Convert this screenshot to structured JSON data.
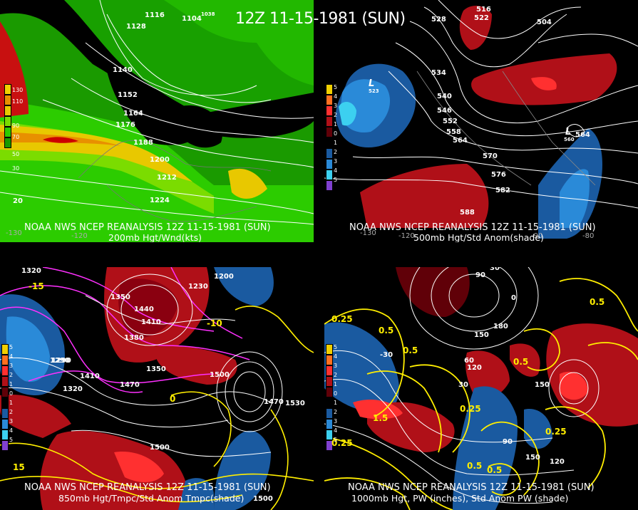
{
  "title": "12Z 11-15-1981 (SUN)",
  "panels": [
    {
      "caption1": "NOAA NWS NCEP REANALYSIS 12Z 11-15-1981 (SUN)",
      "caption2": "200mb Hgt/Wnd(kts)",
      "colorbar": [
        "130",
        "110",
        "90",
        "70",
        "50",
        "30"
      ],
      "labels": [
        "1116",
        "1128",
        "1104",
        "1140",
        "1152",
        "1164",
        "1176",
        "1188",
        "1200",
        "1212",
        "1224",
        "1038",
        "20",
        "-130",
        "-120"
      ]
    },
    {
      "caption1": "NOAA NWS NCEP REANALYSIS 12Z 11-15-1981 (SUN)",
      "caption2": "500mb Hgt/Std Anom(shade)",
      "colorbar": [
        "5",
        "4",
        "3",
        "2",
        "1",
        "0",
        "1",
        "2",
        "3",
        "4",
        "5"
      ],
      "labels": [
        "528",
        "516",
        "522",
        "504",
        "534",
        "540",
        "546",
        "552",
        "558",
        "564",
        "570",
        "576",
        "582",
        "588",
        "564",
        "L",
        "523",
        "L",
        "560",
        "-130",
        "-120",
        "-90",
        "-80"
      ]
    },
    {
      "caption1": "NOAA NWS NCEP REANALYSIS 12Z 11-15-1981 (SUN)",
      "caption2": "850mb Hgt/Tmpc/Std Anom Tmpc(shade)",
      "colorbar": [
        "5",
        "4",
        "3",
        "2",
        "1",
        "0",
        "1",
        "2",
        "3",
        "4",
        "5"
      ],
      "labels": [
        "1320",
        "1290",
        "1350",
        "1380",
        "1410",
        "1440",
        "1470",
        "1500",
        "1530",
        "1230",
        "1200",
        "1290",
        "1320",
        "1350",
        "1410",
        "1470",
        "1500",
        "1500",
        "-15",
        "-10",
        "0",
        "15"
      ]
    },
    {
      "caption1": "NOAA NWS NCEP REANALYSIS 12Z 11-15-1981 (SUN)",
      "caption2": "1000mb Hgt, PW (inches), Std Anom PW (shade)",
      "colorbar": [
        "5",
        "4",
        "3",
        "2",
        "1",
        "0",
        "1",
        "2",
        "3",
        "4",
        "5"
      ],
      "labels": [
        "30",
        "90",
        "0",
        "150",
        "180",
        "120",
        "150",
        "0.5",
        "0.25",
        "0.5",
        "0.5",
        "0.5",
        "0.25",
        "1.5",
        "0.25",
        "0.5",
        "0.25",
        "30",
        "90",
        "150",
        "120",
        "-30",
        "60",
        "0.5"
      ]
    }
  ]
}
